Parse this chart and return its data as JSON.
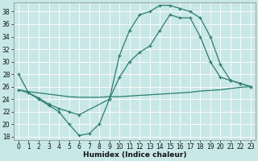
{
  "xlabel": "Humidex (Indice chaleur)",
  "ylabel": "",
  "bg_color": "#c8e8e8",
  "grid_color": "#ffffff",
  "line_color": "#2d7d6e",
  "xlim": [
    -0.5,
    23.5
  ],
  "ylim": [
    17.5,
    39.5
  ],
  "yticks": [
    18,
    20,
    22,
    24,
    26,
    28,
    30,
    32,
    34,
    36,
    38
  ],
  "xticks": [
    0,
    1,
    2,
    3,
    4,
    5,
    6,
    7,
    8,
    9,
    10,
    11,
    12,
    13,
    14,
    15,
    16,
    17,
    18,
    19,
    20,
    21,
    22,
    23
  ],
  "curve1_x": [
    0,
    1,
    2,
    3,
    4,
    5,
    6,
    7,
    8,
    9,
    10,
    11,
    12,
    13,
    14,
    15,
    16,
    17,
    18,
    19,
    20,
    21,
    22,
    23
  ],
  "curve1_y": [
    28,
    25,
    24,
    23,
    22,
    20,
    18.2,
    18.5,
    20,
    24,
    31,
    35,
    37.5,
    38,
    39,
    39,
    38.5,
    38,
    37,
    34,
    29.5,
    27,
    26.5,
    26
  ],
  "curve2_x": [
    0,
    1,
    2,
    3,
    4,
    5,
    6,
    7,
    8,
    9,
    10,
    11,
    12,
    13,
    14,
    15,
    16,
    17,
    18,
    19,
    20,
    21,
    22,
    23
  ],
  "curve2_y": [
    25.5,
    25.2,
    25.0,
    24.8,
    24.6,
    24.4,
    24.3,
    24.3,
    24.3,
    24.4,
    24.4,
    24.5,
    24.6,
    24.7,
    24.8,
    24.9,
    25.0,
    25.1,
    25.3,
    25.4,
    25.5,
    25.7,
    25.9,
    26.0
  ],
  "curve3_x": [
    0,
    1,
    2,
    3,
    4,
    5,
    6,
    9,
    10,
    11,
    12,
    13,
    14,
    15,
    16,
    17,
    18,
    19,
    20,
    21,
    22,
    23
  ],
  "curve3_y": [
    25.5,
    25.0,
    24.2,
    23.2,
    22.5,
    22.0,
    21.5,
    24.0,
    27.5,
    30.0,
    31.5,
    32.5,
    35.0,
    37.5,
    37.0,
    37.0,
    34.0,
    30.0,
    27.5,
    27.0,
    26.5,
    26.0
  ],
  "figsize": [
    3.2,
    2.0
  ],
  "dpi": 100
}
